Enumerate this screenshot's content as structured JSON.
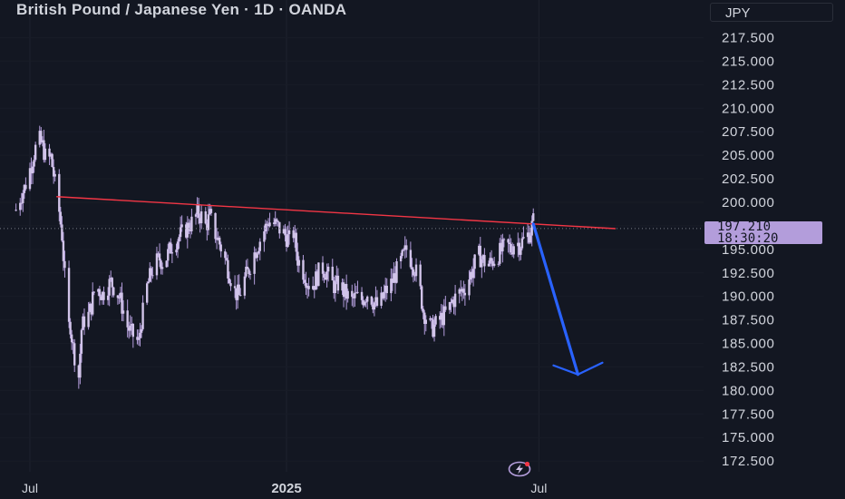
{
  "header": {
    "title": "British Pound / Japanese Yen · 1D · OANDA",
    "currency": "JPY"
  },
  "price_label": {
    "price": "197.210",
    "countdown": "18:30:20"
  },
  "colors": {
    "background": "#131722",
    "candles": "#d1c4e9",
    "candle_shadow": "#b39ddb",
    "trendline": "#f23645",
    "arrow": "#2962ff",
    "grid": "#1e222d",
    "price_tag": "#b39ddb"
  },
  "logo": {
    "icon": "lightning-bolt-icon"
  },
  "chart_data": {
    "type": "candlestick",
    "title": "British Pound / Japanese Yen · 1D · OANDA",
    "ylim": [
      171.5,
      219.3
    ],
    "yticks": [
      172.5,
      175.0,
      177.5,
      180.0,
      182.5,
      185.0,
      187.5,
      190.0,
      192.5,
      195.0,
      197.5,
      200.0,
      202.5,
      205.0,
      207.5,
      210.0,
      212.5,
      215.0,
      217.5
    ],
    "ytick_labels": [
      "172.500",
      "175.000",
      "177.500",
      "180.000",
      "182.500",
      "185.000",
      "187.500",
      "190.000",
      "192.500",
      "195.000",
      "197.500",
      "200.000",
      "202.500",
      "205.000",
      "207.500",
      "210.000",
      "212.500",
      "215.000",
      "217.500"
    ],
    "x_labels": [
      {
        "label": "Jul",
        "date": "2024-07-01",
        "bold": false
      },
      {
        "label": "2025",
        "date": "2025-01-01",
        "bold": true
      },
      {
        "label": "Jul",
        "date": "2025-07-01",
        "bold": false
      }
    ],
    "x_range": [
      "2024-06-21",
      "2025-09-25"
    ],
    "current_price": 197.21,
    "close_path": [
      [
        "2024-06-21",
        199.2
      ],
      [
        "2024-06-24",
        200.5
      ],
      [
        "2024-06-27",
        201.5
      ],
      [
        "2024-07-01",
        203.5
      ],
      [
        "2024-07-04",
        205.2
      ],
      [
        "2024-07-07",
        206.8
      ],
      [
        "2024-07-10",
        206.0
      ],
      [
        "2024-07-13",
        204.3
      ],
      [
        "2024-07-16",
        204.8
      ],
      [
        "2024-07-19",
        202.0
      ],
      [
        "2024-07-22",
        199.0
      ],
      [
        "2024-07-24",
        196.5
      ],
      [
        "2024-07-26",
        192.0
      ],
      [
        "2024-07-28",
        186.5
      ],
      [
        "2024-07-30",
        187.0
      ],
      [
        "2024-08-01",
        184.5
      ],
      [
        "2024-08-03",
        183.0
      ],
      [
        "2024-08-05",
        181.5
      ],
      [
        "2024-08-07",
        186.5
      ],
      [
        "2024-08-09",
        187.5
      ],
      [
        "2024-08-12",
        188.0
      ],
      [
        "2024-08-14",
        189.0
      ],
      [
        "2024-08-16",
        190.5
      ],
      [
        "2024-08-19",
        190.8
      ],
      [
        "2024-08-22",
        190.2
      ],
      [
        "2024-08-25",
        191.0
      ],
      [
        "2024-08-28",
        191.5
      ],
      [
        "2024-08-31",
        190.8
      ],
      [
        "2024-09-03",
        190.0
      ],
      [
        "2024-09-06",
        188.5
      ],
      [
        "2024-09-09",
        186.8
      ],
      [
        "2024-09-12",
        186.0
      ],
      [
        "2024-09-15",
        185.5
      ],
      [
        "2024-09-17",
        185.0
      ],
      [
        "2024-09-19",
        187.5
      ],
      [
        "2024-09-21",
        189.0
      ],
      [
        "2024-09-23",
        191.0
      ],
      [
        "2024-09-26",
        192.5
      ],
      [
        "2024-09-29",
        193.5
      ],
      [
        "2024-10-02",
        194.0
      ],
      [
        "2024-10-05",
        193.5
      ],
      [
        "2024-10-08",
        194.5
      ],
      [
        "2024-10-11",
        195.5
      ],
      [
        "2024-10-14",
        196.0
      ],
      [
        "2024-10-17",
        196.5
      ],
      [
        "2024-10-20",
        197.0
      ],
      [
        "2024-10-23",
        197.5
      ],
      [
        "2024-10-26",
        198.0
      ],
      [
        "2024-10-29",
        198.8
      ],
      [
        "2024-11-01",
        198.5
      ],
      [
        "2024-11-04",
        197.5
      ],
      [
        "2024-11-07",
        198.5
      ],
      [
        "2024-11-10",
        197.0
      ],
      [
        "2024-11-13",
        196.0
      ],
      [
        "2024-11-16",
        194.8
      ],
      [
        "2024-11-19",
        193.5
      ],
      [
        "2024-11-22",
        192.0
      ],
      [
        "2024-11-25",
        190.5
      ],
      [
        "2024-11-28",
        190.0
      ],
      [
        "2024-12-01",
        191.5
      ],
      [
        "2024-12-04",
        192.5
      ],
      [
        "2024-12-07",
        193.8
      ],
      [
        "2024-12-10",
        195.0
      ],
      [
        "2024-12-13",
        196.0
      ],
      [
        "2024-12-16",
        197.0
      ],
      [
        "2024-12-19",
        198.0
      ],
      [
        "2024-12-22",
        197.8
      ],
      [
        "2024-12-25",
        197.5
      ],
      [
        "2024-12-28",
        197.0
      ],
      [
        "2024-12-31",
        196.5
      ],
      [
        "2025-01-03",
        196.0
      ],
      [
        "2025-01-06",
        196.8
      ],
      [
        "2025-01-09",
        194.0
      ],
      [
        "2025-01-12",
        193.0
      ],
      [
        "2025-01-15",
        192.0
      ],
      [
        "2025-01-18",
        191.0
      ],
      [
        "2025-01-21",
        191.5
      ],
      [
        "2025-01-24",
        192.5
      ],
      [
        "2025-01-27",
        193.0
      ],
      [
        "2025-01-30",
        192.5
      ],
      [
        "2025-02-02",
        191.5
      ],
      [
        "2025-02-05",
        191.0
      ],
      [
        "2025-02-08",
        191.5
      ],
      [
        "2025-02-11",
        190.5
      ],
      [
        "2025-02-14",
        190.0
      ],
      [
        "2025-02-17",
        189.5
      ],
      [
        "2025-02-20",
        190.0
      ],
      [
        "2025-02-23",
        189.5
      ],
      [
        "2025-02-26",
        190.0
      ],
      [
        "2025-03-01",
        190.5
      ],
      [
        "2025-03-04",
        189.5
      ],
      [
        "2025-03-07",
        189.0
      ],
      [
        "2025-03-10",
        189.5
      ],
      [
        "2025-03-13",
        190.5
      ],
      [
        "2025-03-16",
        191.0
      ],
      [
        "2025-03-19",
        192.0
      ],
      [
        "2025-03-22",
        193.0
      ],
      [
        "2025-03-25",
        194.0
      ],
      [
        "2025-03-28",
        195.0
      ],
      [
        "2025-03-31",
        194.0
      ],
      [
        "2025-04-03",
        193.0
      ],
      [
        "2025-04-06",
        191.5
      ],
      [
        "2025-04-09",
        188.5
      ],
      [
        "2025-04-12",
        187.5
      ],
      [
        "2025-04-15",
        186.5
      ],
      [
        "2025-04-18",
        187.0
      ],
      [
        "2025-04-21",
        187.5
      ],
      [
        "2025-04-24",
        188.0
      ],
      [
        "2025-04-27",
        188.5
      ],
      [
        "2025-04-30",
        189.5
      ],
      [
        "2025-05-03",
        190.0
      ],
      [
        "2025-05-06",
        190.5
      ],
      [
        "2025-05-09",
        191.0
      ],
      [
        "2025-05-12",
        192.0
      ],
      [
        "2025-05-15",
        193.0
      ],
      [
        "2025-05-18",
        194.5
      ],
      [
        "2025-05-21",
        194.0
      ],
      [
        "2025-05-24",
        193.5
      ],
      [
        "2025-05-27",
        193.5
      ],
      [
        "2025-05-30",
        194.0
      ],
      [
        "2025-06-02",
        194.5
      ],
      [
        "2025-06-05",
        195.0
      ],
      [
        "2025-06-08",
        195.5
      ],
      [
        "2025-06-11",
        195.0
      ],
      [
        "2025-06-14",
        196.0
      ],
      [
        "2025-06-17",
        195.5
      ],
      [
        "2025-06-20",
        196.0
      ],
      [
        "2025-06-23",
        196.5
      ],
      [
        "2025-06-25",
        197.0
      ],
      [
        "2025-06-27",
        198.0
      ]
    ],
    "trendline": {
      "from": [
        "2024-07-20",
        200.6
      ],
      "to": [
        "2025-08-25",
        197.2
      ]
    },
    "projection_arrow": {
      "from": [
        "2025-06-27",
        197.7
      ],
      "to": [
        "2025-07-29",
        181.7
      ]
    },
    "current_price_line": 197.21
  }
}
